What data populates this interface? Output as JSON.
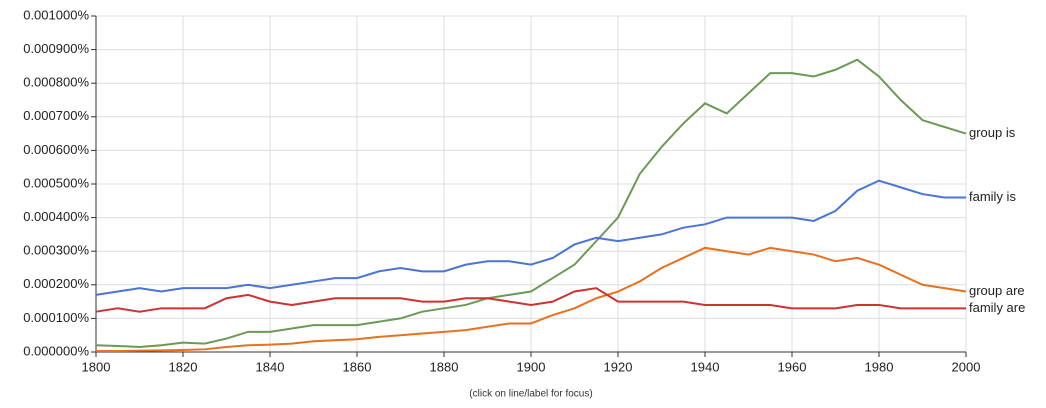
{
  "chart_data": {
    "type": "line",
    "note": "(click on line/label for focus)",
    "x": [
      1800,
      1805,
      1810,
      1815,
      1820,
      1825,
      1830,
      1835,
      1840,
      1845,
      1850,
      1855,
      1860,
      1865,
      1870,
      1875,
      1880,
      1885,
      1890,
      1895,
      1900,
      1905,
      1910,
      1915,
      1920,
      1925,
      1930,
      1935,
      1940,
      1945,
      1950,
      1955,
      1960,
      1965,
      1970,
      1975,
      1980,
      1985,
      1990,
      1995,
      2000
    ],
    "series": [
      {
        "name": "group is",
        "color": "#6b9a57",
        "values": [
          2e-05,
          1.8e-05,
          1.5e-05,
          2e-05,
          2.8e-05,
          2.5e-05,
          4e-05,
          6e-05,
          6e-05,
          7e-05,
          8e-05,
          8e-05,
          8e-05,
          9e-05,
          0.0001,
          0.00012,
          0.00013,
          0.00014,
          0.00016,
          0.00017,
          0.00018,
          0.00022,
          0.00026,
          0.00033,
          0.0004,
          0.00053,
          0.00061,
          0.00068,
          0.00074,
          0.00071,
          0.00077,
          0.00083,
          0.00083,
          0.00082,
          0.00084,
          0.00087,
          0.00082,
          0.00075,
          0.00069,
          0.00067,
          0.00065
        ]
      },
      {
        "name": "family is",
        "color": "#4a74d6",
        "values": [
          0.00017,
          0.00018,
          0.00019,
          0.00018,
          0.00019,
          0.00019,
          0.00019,
          0.0002,
          0.00019,
          0.0002,
          0.00021,
          0.00022,
          0.00022,
          0.00024,
          0.00025,
          0.00024,
          0.00024,
          0.00026,
          0.00027,
          0.00027,
          0.00026,
          0.00028,
          0.00032,
          0.00034,
          0.00033,
          0.00034,
          0.00035,
          0.00037,
          0.00038,
          0.0004,
          0.0004,
          0.0004,
          0.0004,
          0.00039,
          0.00042,
          0.00048,
          0.00051,
          0.00049,
          0.00047,
          0.00046,
          0.00046
        ]
      },
      {
        "name": "group are",
        "color": "#e8711f",
        "values": [
          3e-06,
          3e-06,
          4e-06,
          5e-06,
          6e-06,
          8e-06,
          1.5e-05,
          2e-05,
          2.2e-05,
          2.5e-05,
          3.2e-05,
          3.5e-05,
          3.8e-05,
          4.5e-05,
          5e-05,
          5.5e-05,
          6e-05,
          6.5e-05,
          7.5e-05,
          8.5e-05,
          8.5e-05,
          0.00011,
          0.00013,
          0.00016,
          0.00018,
          0.00021,
          0.00025,
          0.00028,
          0.00031,
          0.0003,
          0.00029,
          0.00031,
          0.0003,
          0.00029,
          0.00027,
          0.00028,
          0.00026,
          0.00023,
          0.0002,
          0.00019,
          0.00018
        ]
      },
      {
        "name": "family are",
        "color": "#cc3333",
        "values": [
          0.00012,
          0.00013,
          0.00012,
          0.00013,
          0.00013,
          0.00013,
          0.00016,
          0.00017,
          0.00015,
          0.00014,
          0.00015,
          0.00016,
          0.00016,
          0.00016,
          0.00016,
          0.00015,
          0.00015,
          0.00016,
          0.00016,
          0.00015,
          0.00014,
          0.00015,
          0.00018,
          0.00019,
          0.00015,
          0.00015,
          0.00015,
          0.00015,
          0.00014,
          0.00014,
          0.00014,
          0.00014,
          0.00013,
          0.00013,
          0.00013,
          0.00014,
          0.00014,
          0.00013,
          0.00013,
          0.00013,
          0.00013
        ]
      }
    ],
    "xlim": [
      1800,
      2000
    ],
    "xticks": [
      1800,
      1820,
      1840,
      1860,
      1880,
      1900,
      1920,
      1940,
      1960,
      1980,
      2000
    ],
    "ylim": [
      0,
      0.001
    ],
    "yticks": [
      {
        "value": 0,
        "label": "0.000000%"
      },
      {
        "value": 0.0001,
        "label": "0.000100%"
      },
      {
        "value": 0.0002,
        "label": "0.000200%"
      },
      {
        "value": 0.0003,
        "label": "0.000300%"
      },
      {
        "value": 0.0004,
        "label": "0.000400%"
      },
      {
        "value": 0.0005,
        "label": "0.000500%"
      },
      {
        "value": 0.0006,
        "label": "0.000600%"
      },
      {
        "value": 0.0007,
        "label": "0.000700%"
      },
      {
        "value": 0.0008,
        "label": "0.000800%"
      },
      {
        "value": 0.0009,
        "label": "0.000900%"
      },
      {
        "value": 0.001,
        "label": "0.001000%"
      }
    ],
    "grid": true,
    "legend": "right-end"
  }
}
